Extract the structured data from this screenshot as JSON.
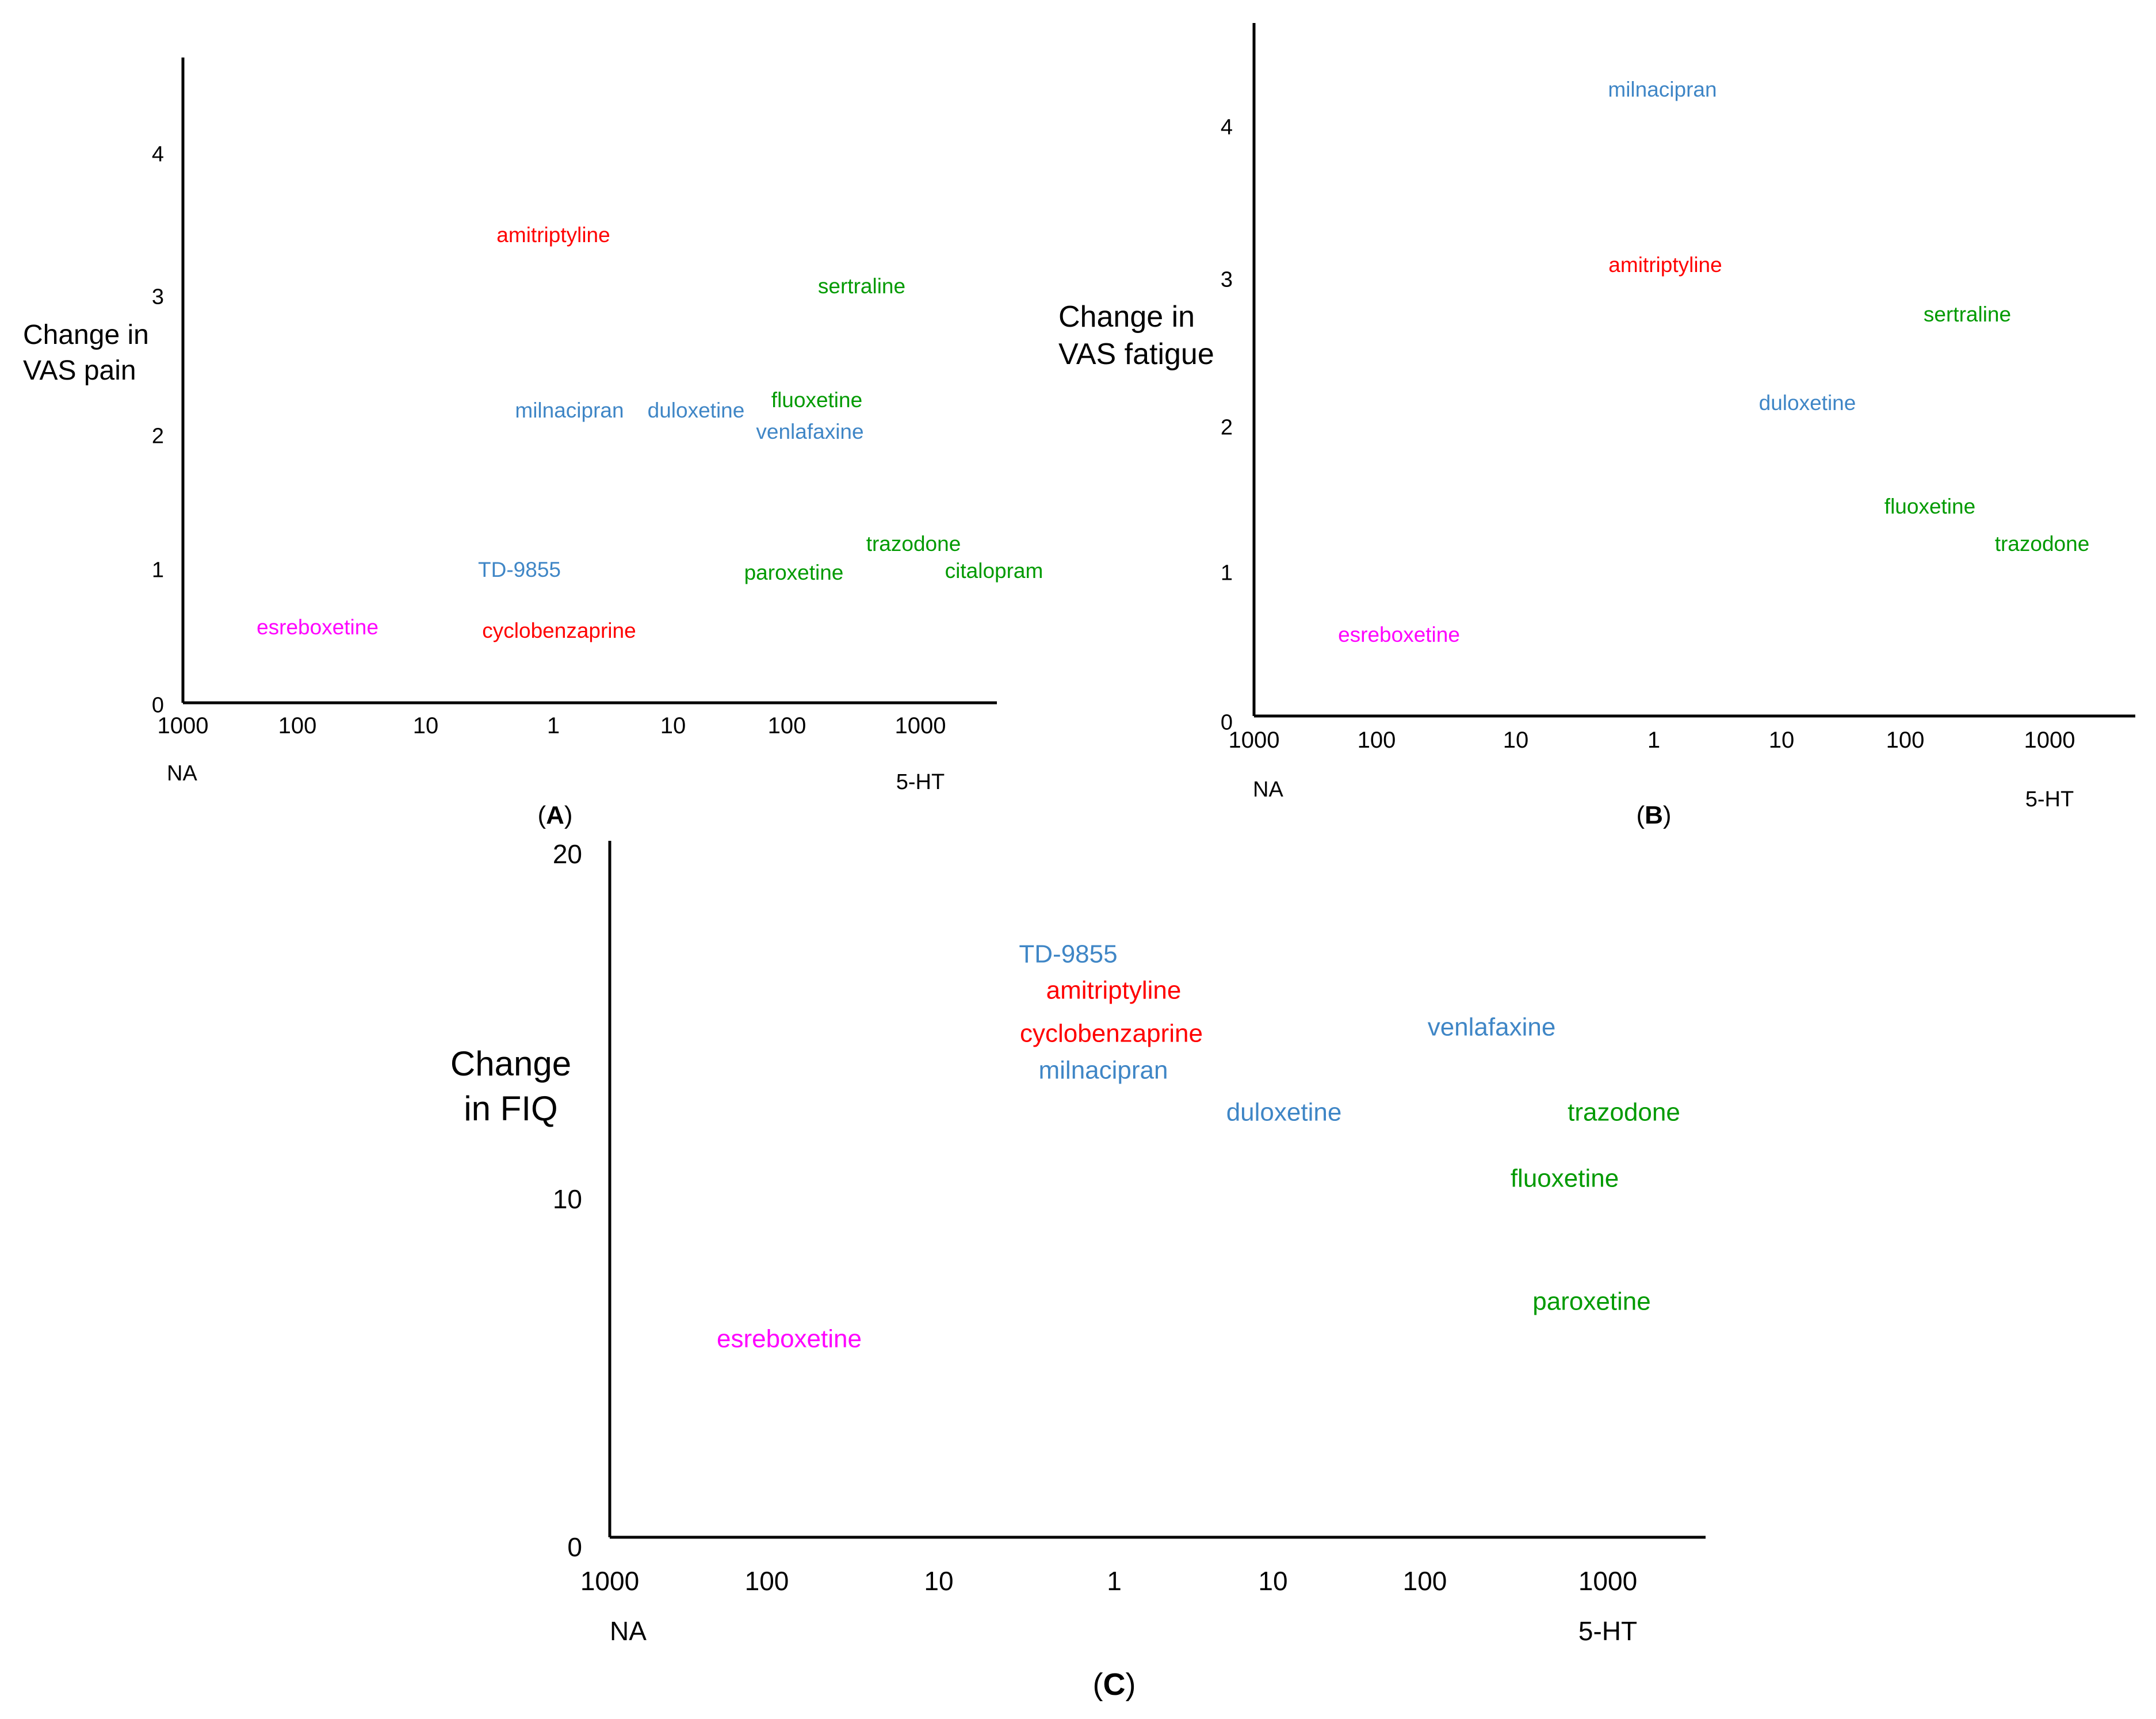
{
  "colors": {
    "red": "#ff0000",
    "blue": "#3f86c6",
    "green": "#009a00",
    "magenta": "#ff00ff",
    "axis": "#000000"
  },
  "chart_data": [
    {
      "type": "scatter",
      "panel_label": "A",
      "ylabel_lines": [
        "Change in",
        "VAS pain"
      ],
      "ylim": [
        0,
        4.6
      ],
      "yticks": [
        "0",
        "1",
        "2",
        "3",
        "4"
      ],
      "xtick_labels": [
        "1000",
        "100",
        "10",
        "1",
        "10",
        "100",
        "1000"
      ],
      "x_left_label": "NA",
      "x_right_label": "5-HT",
      "x_scale_note": "x = signed log10 selectivity ratio; negative = NA selective, positive = 5-HT selective",
      "xlim": [
        -3,
        3.5
      ],
      "points": [
        {
          "label": "amitriptyline",
          "x": 0.0,
          "y": 3.4,
          "color": "red"
        },
        {
          "label": "sertraline",
          "x": 2.6,
          "y": 2.98,
          "color": "green"
        },
        {
          "label": "milnacipran",
          "x": 0.1,
          "y": 2.13,
          "color": "blue"
        },
        {
          "label": "duloxetine",
          "x": 1.2,
          "y": 2.13,
          "color": "blue"
        },
        {
          "label": "fluoxetine",
          "x": 2.3,
          "y": 2.2,
          "color": "green"
        },
        {
          "label": "venlafaxine",
          "x": 2.25,
          "y": 1.97,
          "color": "blue"
        },
        {
          "label": "trazodone",
          "x": 2.9,
          "y": 1.17,
          "color": "green"
        },
        {
          "label": "TD-9855",
          "x": -0.3,
          "y": 0.97,
          "color": "blue"
        },
        {
          "label": "paroxetine",
          "x": 2.0,
          "y": 0.95,
          "color": "green"
        },
        {
          "label": "citalopram",
          "x": 3.45,
          "y": 0.97,
          "color": "green"
        },
        {
          "label": "esreboxetine",
          "x": -1.9,
          "y": 0.55,
          "color": "magenta"
        },
        {
          "label": "cyclobenzaprine",
          "x": 0.05,
          "y": 0.52,
          "color": "red"
        }
      ]
    },
    {
      "type": "scatter",
      "panel_label": "B",
      "ylabel_lines": [
        "Change in",
        "VAS fatigue"
      ],
      "ylim": [
        0,
        4.6
      ],
      "yticks": [
        "0",
        "1",
        "2",
        "3",
        "4"
      ],
      "xtick_labels": [
        "1000",
        "100",
        "10",
        "1",
        "10",
        "100",
        "1000"
      ],
      "x_left_label": "NA",
      "x_right_label": "5-HT",
      "x_scale_note": "x = signed log10 selectivity ratio; negative = NA selective, positive = 5-HT selective",
      "xlim": [
        -3,
        3.5
      ],
      "points": [
        {
          "label": "milnacipran",
          "x": 0.1,
          "y": 4.25,
          "color": "blue"
        },
        {
          "label": "amitriptyline",
          "x": 0.1,
          "y": 3.05,
          "color": "red"
        },
        {
          "label": "sertraline",
          "x": 2.5,
          "y": 2.73,
          "color": "green"
        },
        {
          "label": "duloxetine",
          "x": 1.2,
          "y": 2.12,
          "color": "blue"
        },
        {
          "label": "fluoxetine",
          "x": 2.2,
          "y": 1.45,
          "color": "green"
        },
        {
          "label": "trazodone",
          "x": 3.1,
          "y": 1.2,
          "color": "green"
        },
        {
          "label": "esreboxetine",
          "x": -1.95,
          "y": 0.58,
          "color": "magenta"
        }
      ]
    },
    {
      "type": "scatter",
      "panel_label": "C",
      "ylabel_lines": [
        "Change",
        "in FIQ"
      ],
      "ylim": [
        0,
        20
      ],
      "yticks": [
        "0",
        "10",
        "20"
      ],
      "xtick_labels": [
        "1000",
        "100",
        "10",
        "1",
        "10",
        "100",
        "1000"
      ],
      "x_left_label": "NA",
      "x_right_label": "5-HT",
      "x_scale_note": "x = signed log10 selectivity ratio; negative = NA selective, positive = 5-HT selective",
      "xlim": [
        -3,
        3.5
      ],
      "points": [
        {
          "label": "TD-9855",
          "x": -0.3,
          "y": 17.2,
          "color": "blue"
        },
        {
          "label": "amitriptyline",
          "x": 0.0,
          "y": 16.1,
          "color": "red"
        },
        {
          "label": "cyclobenzaprine",
          "x": -0.03,
          "y": 14.9,
          "color": "red"
        },
        {
          "label": "milnacipran",
          "x": -0.08,
          "y": 13.8,
          "color": "blue"
        },
        {
          "label": "venlafaxine",
          "x": 2.4,
          "y": 14.9,
          "color": "blue"
        },
        {
          "label": "duloxetine",
          "x": 1.1,
          "y": 12.6,
          "color": "blue"
        },
        {
          "label": "trazodone",
          "x": 3.1,
          "y": 12.6,
          "color": "green"
        },
        {
          "label": "fluoxetine",
          "x": 2.75,
          "y": 10.6,
          "color": "green"
        },
        {
          "label": "paroxetine",
          "x": 2.9,
          "y": 7.0,
          "color": "green"
        },
        {
          "label": "esreboxetine",
          "x": -2.2,
          "y": 5.9,
          "color": "magenta"
        }
      ]
    }
  ]
}
